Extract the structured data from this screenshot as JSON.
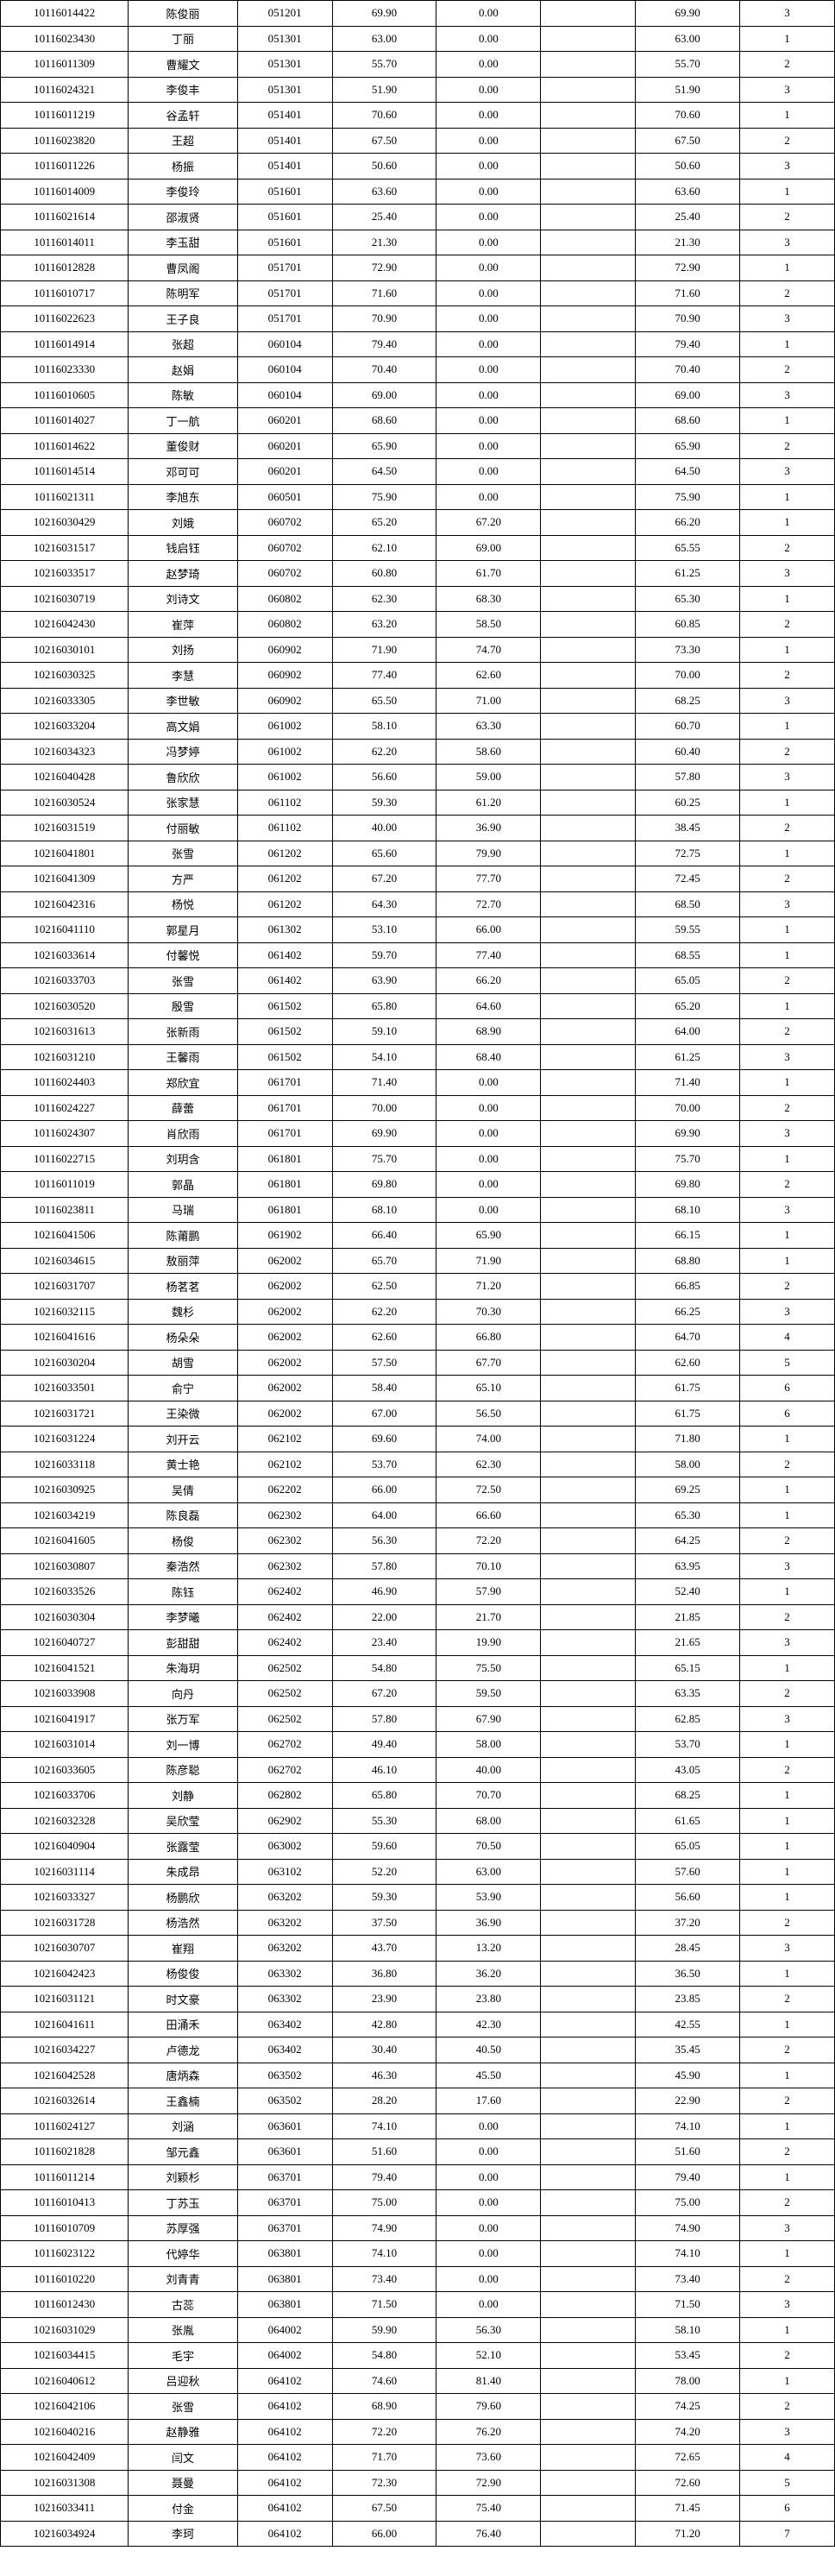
{
  "table": {
    "rows": [
      [
        "10116014422",
        "陈俊丽",
        "051201",
        "69.90",
        "0.00",
        "",
        "69.90",
        "3"
      ],
      [
        "10116023430",
        "丁丽",
        "051301",
        "63.00",
        "0.00",
        "",
        "63.00",
        "1"
      ],
      [
        "10116011309",
        "曹耀文",
        "051301",
        "55.70",
        "0.00",
        "",
        "55.70",
        "2"
      ],
      [
        "10116024321",
        "李俊丰",
        "051301",
        "51.90",
        "0.00",
        "",
        "51.90",
        "3"
      ],
      [
        "10116011219",
        "谷孟轩",
        "051401",
        "70.60",
        "0.00",
        "",
        "70.60",
        "1"
      ],
      [
        "10116023820",
        "王超",
        "051401",
        "67.50",
        "0.00",
        "",
        "67.50",
        "2"
      ],
      [
        "10116011226",
        "杨振",
        "051401",
        "50.60",
        "0.00",
        "",
        "50.60",
        "3"
      ],
      [
        "10116014009",
        "李俊玲",
        "051601",
        "63.60",
        "0.00",
        "",
        "63.60",
        "1"
      ],
      [
        "10116021614",
        "邵淑贤",
        "051601",
        "25.40",
        "0.00",
        "",
        "25.40",
        "2"
      ],
      [
        "10116014011",
        "李玉甜",
        "051601",
        "21.30",
        "0.00",
        "",
        "21.30",
        "3"
      ],
      [
        "10116012828",
        "曹凤阁",
        "051701",
        "72.90",
        "0.00",
        "",
        "72.90",
        "1"
      ],
      [
        "10116010717",
        "陈明军",
        "051701",
        "71.60",
        "0.00",
        "",
        "71.60",
        "2"
      ],
      [
        "10116022623",
        "王子良",
        "051701",
        "70.90",
        "0.00",
        "",
        "70.90",
        "3"
      ],
      [
        "10116014914",
        "张超",
        "060104",
        "79.40",
        "0.00",
        "",
        "79.40",
        "1"
      ],
      [
        "10116023330",
        "赵娟",
        "060104",
        "70.40",
        "0.00",
        "",
        "70.40",
        "2"
      ],
      [
        "10116010605",
        "陈敏",
        "060104",
        "69.00",
        "0.00",
        "",
        "69.00",
        "3"
      ],
      [
        "10116014027",
        "丁一航",
        "060201",
        "68.60",
        "0.00",
        "",
        "68.60",
        "1"
      ],
      [
        "10116014622",
        "董俊财",
        "060201",
        "65.90",
        "0.00",
        "",
        "65.90",
        "2"
      ],
      [
        "10116014514",
        "邓可可",
        "060201",
        "64.50",
        "0.00",
        "",
        "64.50",
        "3"
      ],
      [
        "10116021311",
        "李旭东",
        "060501",
        "75.90",
        "0.00",
        "",
        "75.90",
        "1"
      ],
      [
        "10216030429",
        "刘娥",
        "060702",
        "65.20",
        "67.20",
        "",
        "66.20",
        "1"
      ],
      [
        "10216031517",
        "钱启钰",
        "060702",
        "62.10",
        "69.00",
        "",
        "65.55",
        "2"
      ],
      [
        "10216033517",
        "赵梦琦",
        "060702",
        "60.80",
        "61.70",
        "",
        "61.25",
        "3"
      ],
      [
        "10216030719",
        "刘诗文",
        "060802",
        "62.30",
        "68.30",
        "",
        "65.30",
        "1"
      ],
      [
        "10216042430",
        "崔萍",
        "060802",
        "63.20",
        "58.50",
        "",
        "60.85",
        "2"
      ],
      [
        "10216030101",
        "刘扬",
        "060902",
        "71.90",
        "74.70",
        "",
        "73.30",
        "1"
      ],
      [
        "10216030325",
        "李慧",
        "060902",
        "77.40",
        "62.60",
        "",
        "70.00",
        "2"
      ],
      [
        "10216033305",
        "李世敏",
        "060902",
        "65.50",
        "71.00",
        "",
        "68.25",
        "3"
      ],
      [
        "10216033204",
        "高文娟",
        "061002",
        "58.10",
        "63.30",
        "",
        "60.70",
        "1"
      ],
      [
        "10216034323",
        "冯梦婷",
        "061002",
        "62.20",
        "58.60",
        "",
        "60.40",
        "2"
      ],
      [
        "10216040428",
        "鲁欣欣",
        "061002",
        "56.60",
        "59.00",
        "",
        "57.80",
        "3"
      ],
      [
        "10216030524",
        "张家慧",
        "061102",
        "59.30",
        "61.20",
        "",
        "60.25",
        "1"
      ],
      [
        "10216031519",
        "付丽敏",
        "061102",
        "40.00",
        "36.90",
        "",
        "38.45",
        "2"
      ],
      [
        "10216041801",
        "张雪",
        "061202",
        "65.60",
        "79.90",
        "",
        "72.75",
        "1"
      ],
      [
        "10216041309",
        "方严",
        "061202",
        "67.20",
        "77.70",
        "",
        "72.45",
        "2"
      ],
      [
        "10216042316",
        "杨悦",
        "061202",
        "64.30",
        "72.70",
        "",
        "68.50",
        "3"
      ],
      [
        "10216041110",
        "郭星月",
        "061302",
        "53.10",
        "66.00",
        "",
        "59.55",
        "1"
      ],
      [
        "10216033614",
        "付馨悦",
        "061402",
        "59.70",
        "77.40",
        "",
        "68.55",
        "1"
      ],
      [
        "10216033703",
        "张雪",
        "061402",
        "63.90",
        "66.20",
        "",
        "65.05",
        "2"
      ],
      [
        "10216030520",
        "殷雪",
        "061502",
        "65.80",
        "64.60",
        "",
        "65.20",
        "1"
      ],
      [
        "10216031613",
        "张新雨",
        "061502",
        "59.10",
        "68.90",
        "",
        "64.00",
        "2"
      ],
      [
        "10216031210",
        "王馨雨",
        "061502",
        "54.10",
        "68.40",
        "",
        "61.25",
        "3"
      ],
      [
        "10116024403",
        "郑欣宜",
        "061701",
        "71.40",
        "0.00",
        "",
        "71.40",
        "1"
      ],
      [
        "10116024227",
        "薛蕾",
        "061701",
        "70.00",
        "0.00",
        "",
        "70.00",
        "2"
      ],
      [
        "10116024307",
        "肖欣雨",
        "061701",
        "69.90",
        "0.00",
        "",
        "69.90",
        "3"
      ],
      [
        "10116022715",
        "刘玥含",
        "061801",
        "75.70",
        "0.00",
        "",
        "75.70",
        "1"
      ],
      [
        "10116011019",
        "郭晶",
        "061801",
        "69.80",
        "0.00",
        "",
        "69.80",
        "2"
      ],
      [
        "10116023811",
        "马瑞",
        "061801",
        "68.10",
        "0.00",
        "",
        "68.10",
        "3"
      ],
      [
        "10216041506",
        "陈莆鹏",
        "061902",
        "66.40",
        "65.90",
        "",
        "66.15",
        "1"
      ],
      [
        "10216034615",
        "敖丽萍",
        "062002",
        "65.70",
        "71.90",
        "",
        "68.80",
        "1"
      ],
      [
        "10216031707",
        "杨茗茗",
        "062002",
        "62.50",
        "71.20",
        "",
        "66.85",
        "2"
      ],
      [
        "10216032115",
        "魏杉",
        "062002",
        "62.20",
        "70.30",
        "",
        "66.25",
        "3"
      ],
      [
        "10216041616",
        "杨朵朵",
        "062002",
        "62.60",
        "66.80",
        "",
        "64.70",
        "4"
      ],
      [
        "10216030204",
        "胡雪",
        "062002",
        "57.50",
        "67.70",
        "",
        "62.60",
        "5"
      ],
      [
        "10216033501",
        "俞宁",
        "062002",
        "58.40",
        "65.10",
        "",
        "61.75",
        "6"
      ],
      [
        "10216031721",
        "王染微",
        "062002",
        "67.00",
        "56.50",
        "",
        "61.75",
        "6"
      ],
      [
        "10216031224",
        "刘开云",
        "062102",
        "69.60",
        "74.00",
        "",
        "71.80",
        "1"
      ],
      [
        "10216033118",
        "黄士艳",
        "062102",
        "53.70",
        "62.30",
        "",
        "58.00",
        "2"
      ],
      [
        "10216030925",
        "吴倩",
        "062202",
        "66.00",
        "72.50",
        "",
        "69.25",
        "1"
      ],
      [
        "10216034219",
        "陈良磊",
        "062302",
        "64.00",
        "66.60",
        "",
        "65.30",
        "1"
      ],
      [
        "10216041605",
        "杨俊",
        "062302",
        "56.30",
        "72.20",
        "",
        "64.25",
        "2"
      ],
      [
        "10216030807",
        "秦浩然",
        "062302",
        "57.80",
        "70.10",
        "",
        "63.95",
        "3"
      ],
      [
        "10216033526",
        "陈钰",
        "062402",
        "46.90",
        "57.90",
        "",
        "52.40",
        "1"
      ],
      [
        "10216030304",
        "李梦曦",
        "062402",
        "22.00",
        "21.70",
        "",
        "21.85",
        "2"
      ],
      [
        "10216040727",
        "彭甜甜",
        "062402",
        "23.40",
        "19.90",
        "",
        "21.65",
        "3"
      ],
      [
        "10216041521",
        "朱海玥",
        "062502",
        "54.80",
        "75.50",
        "",
        "65.15",
        "1"
      ],
      [
        "10216033908",
        "向丹",
        "062502",
        "67.20",
        "59.50",
        "",
        "63.35",
        "2"
      ],
      [
        "10216041917",
        "张万军",
        "062502",
        "57.80",
        "67.90",
        "",
        "62.85",
        "3"
      ],
      [
        "10216031014",
        "刘一博",
        "062702",
        "49.40",
        "58.00",
        "",
        "53.70",
        "1"
      ],
      [
        "10216033605",
        "陈彦聪",
        "062702",
        "46.10",
        "40.00",
        "",
        "43.05",
        "2"
      ],
      [
        "10216033706",
        "刘静",
        "062802",
        "65.80",
        "70.70",
        "",
        "68.25",
        "1"
      ],
      [
        "10216032328",
        "吴欣莹",
        "062902",
        "55.30",
        "68.00",
        "",
        "61.65",
        "1"
      ],
      [
        "10216040904",
        "张露莹",
        "063002",
        "59.60",
        "70.50",
        "",
        "65.05",
        "1"
      ],
      [
        "10216031114",
        "朱成昂",
        "063102",
        "52.20",
        "63.00",
        "",
        "57.60",
        "1"
      ],
      [
        "10216033327",
        "杨鹏欣",
        "063202",
        "59.30",
        "53.90",
        "",
        "56.60",
        "1"
      ],
      [
        "10216031728",
        "杨浩然",
        "063202",
        "37.50",
        "36.90",
        "",
        "37.20",
        "2"
      ],
      [
        "10216030707",
        "崔翔",
        "063202",
        "43.70",
        "13.20",
        "",
        "28.45",
        "3"
      ],
      [
        "10216042423",
        "杨俊俊",
        "063302",
        "36.80",
        "36.20",
        "",
        "36.50",
        "1"
      ],
      [
        "10216031121",
        "时文豪",
        "063302",
        "23.90",
        "23.80",
        "",
        "23.85",
        "2"
      ],
      [
        "10216041611",
        "田涌禾",
        "063402",
        "42.80",
        "42.30",
        "",
        "42.55",
        "1"
      ],
      [
        "10216034227",
        "卢德龙",
        "063402",
        "30.40",
        "40.50",
        "",
        "35.45",
        "2"
      ],
      [
        "10216042528",
        "唐炳森",
        "063502",
        "46.30",
        "45.50",
        "",
        "45.90",
        "1"
      ],
      [
        "10216032614",
        "王鑫楠",
        "063502",
        "28.20",
        "17.60",
        "",
        "22.90",
        "2"
      ],
      [
        "10116024127",
        "刘涵",
        "063601",
        "74.10",
        "0.00",
        "",
        "74.10",
        "1"
      ],
      [
        "10116021828",
        "邹元鑫",
        "063601",
        "51.60",
        "0.00",
        "",
        "51.60",
        "2"
      ],
      [
        "10116011214",
        "刘颖杉",
        "063701",
        "79.40",
        "0.00",
        "",
        "79.40",
        "1"
      ],
      [
        "10116010413",
        "丁苏玉",
        "063701",
        "75.00",
        "0.00",
        "",
        "75.00",
        "2"
      ],
      [
        "10116010709",
        "苏厚强",
        "063701",
        "74.90",
        "0.00",
        "",
        "74.90",
        "3"
      ],
      [
        "10116023122",
        "代婷华",
        "063801",
        "74.10",
        "0.00",
        "",
        "74.10",
        "1"
      ],
      [
        "10116010220",
        "刘青青",
        "063801",
        "73.40",
        "0.00",
        "",
        "73.40",
        "2"
      ],
      [
        "10116012430",
        "古蕊",
        "063801",
        "71.50",
        "0.00",
        "",
        "71.50",
        "3"
      ],
      [
        "10216031029",
        "张胤",
        "064002",
        "59.90",
        "56.30",
        "",
        "58.10",
        "1"
      ],
      [
        "10216034415",
        "毛宇",
        "064002",
        "54.80",
        "52.10",
        "",
        "53.45",
        "2"
      ],
      [
        "10216040612",
        "吕迎秋",
        "064102",
        "74.60",
        "81.40",
        "",
        "78.00",
        "1"
      ],
      [
        "10216042106",
        "张雪",
        "064102",
        "68.90",
        "79.60",
        "",
        "74.25",
        "2"
      ],
      [
        "10216040216",
        "赵静雅",
        "064102",
        "72.20",
        "76.20",
        "",
        "74.20",
        "3"
      ],
      [
        "10216042409",
        "闫文",
        "064102",
        "71.70",
        "73.60",
        "",
        "72.65",
        "4"
      ],
      [
        "10216031308",
        "聂曼",
        "064102",
        "72.30",
        "72.90",
        "",
        "72.60",
        "5"
      ],
      [
        "10216033411",
        "付金",
        "064102",
        "67.50",
        "75.40",
        "",
        "71.45",
        "6"
      ],
      [
        "10216034924",
        "李珂",
        "064102",
        "66.00",
        "76.40",
        "",
        "71.20",
        "7"
      ]
    ]
  }
}
